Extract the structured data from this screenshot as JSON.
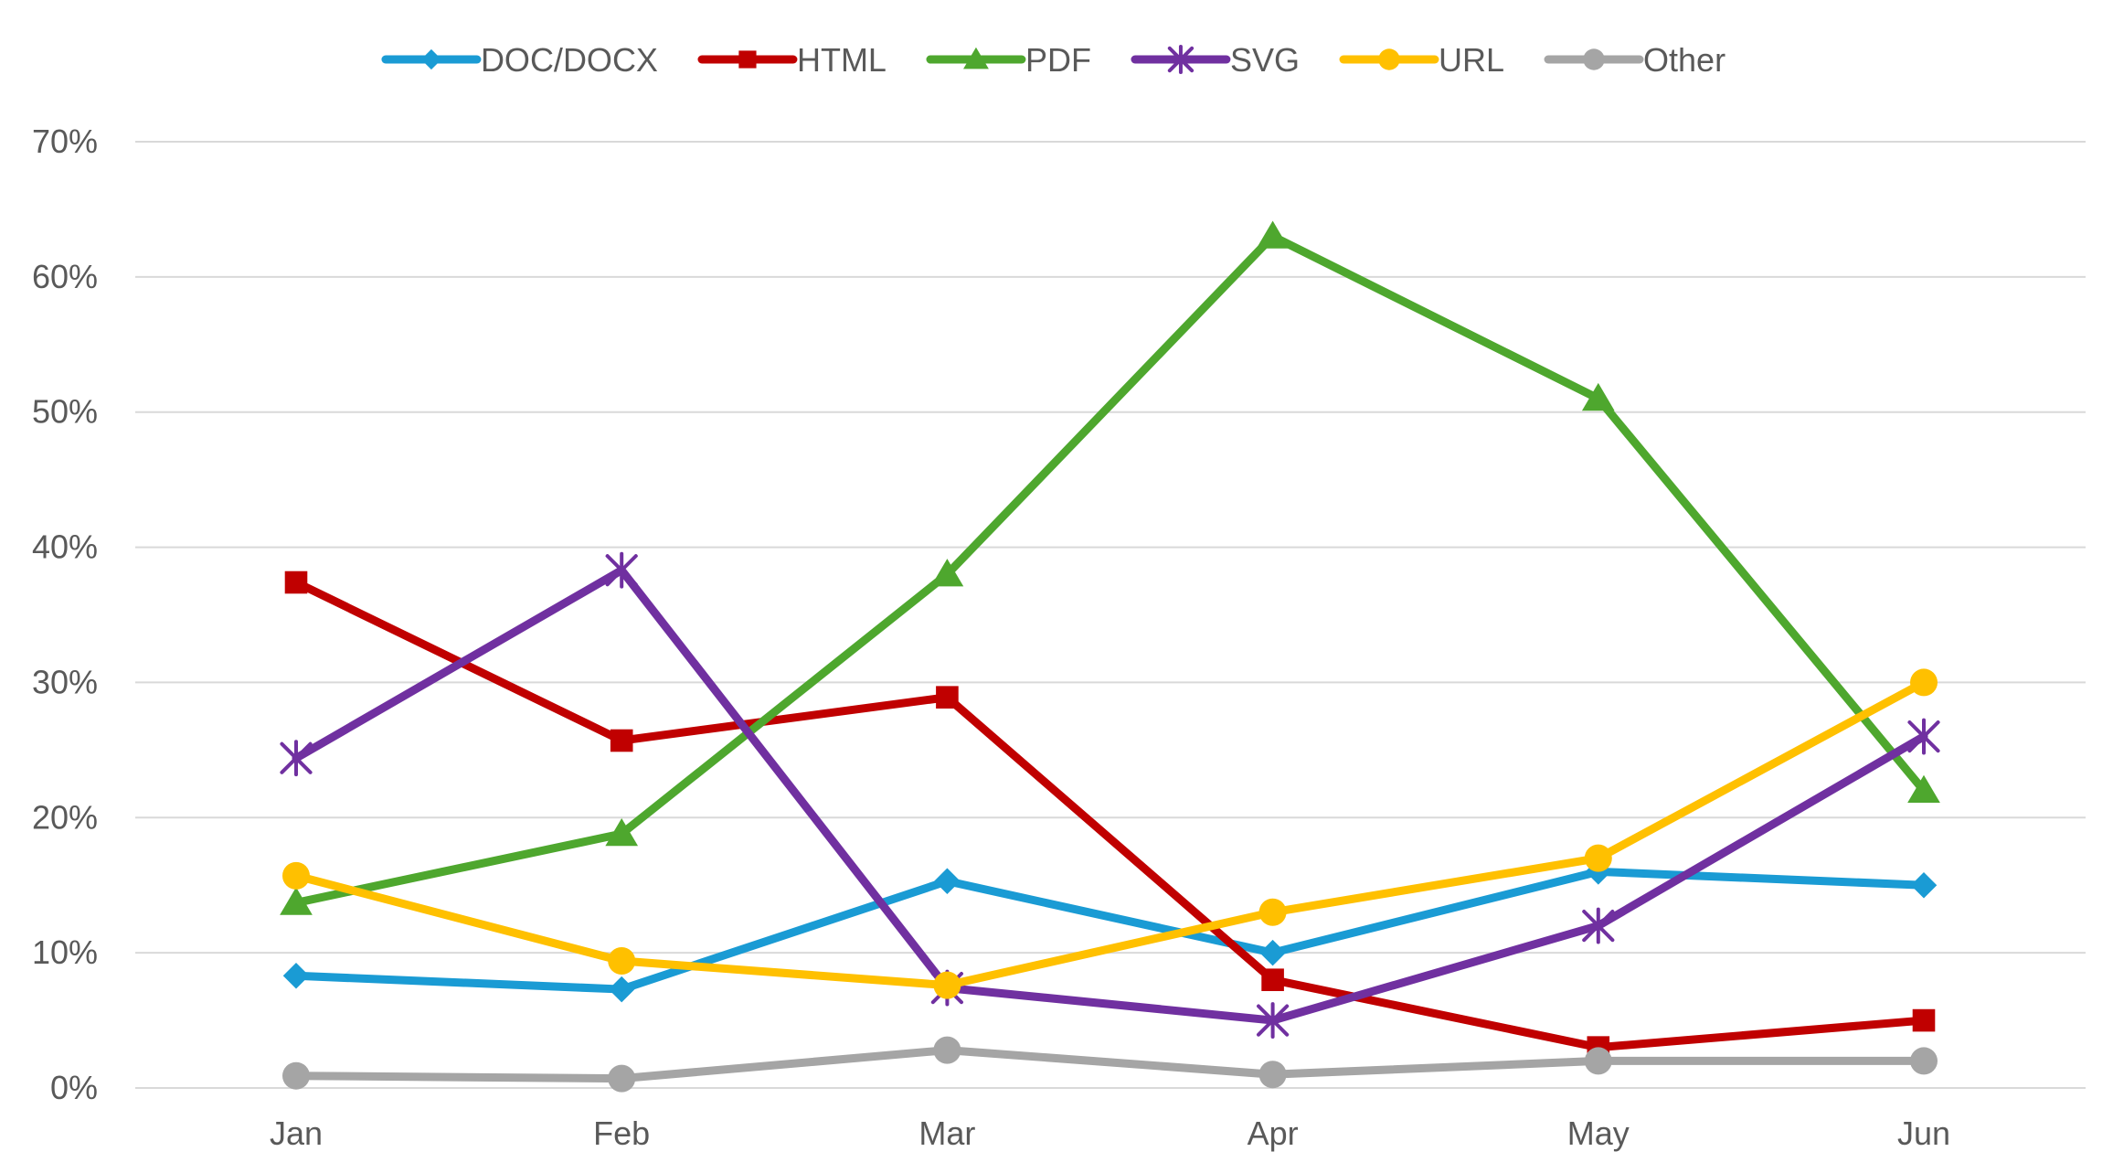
{
  "chart_data": {
    "type": "line",
    "title": "",
    "xlabel": "",
    "ylabel": "",
    "categories": [
      "Jan",
      "Feb",
      "Mar",
      "Apr",
      "May",
      "Jun"
    ],
    "ylim": [
      0,
      70
    ],
    "yticks": [
      0,
      10,
      20,
      30,
      40,
      50,
      60,
      70
    ],
    "ytick_labels": [
      "0%",
      "10%",
      "20%",
      "30%",
      "40%",
      "50%",
      "60%",
      "70%"
    ],
    "grid": true,
    "legend_position": "top",
    "series": [
      {
        "name": "DOC/DOCX",
        "color": "#1a9bd4",
        "marker": "diamond",
        "values": [
          8.3,
          7.3,
          15.3,
          10.0,
          16.0,
          15.0
        ]
      },
      {
        "name": "HTML",
        "color": "#c00000",
        "marker": "square",
        "values": [
          37.4,
          25.7,
          28.9,
          8.0,
          3.0,
          5.0
        ]
      },
      {
        "name": "PDF",
        "color": "#4ea72e",
        "marker": "triangle",
        "values": [
          13.7,
          18.8,
          38.0,
          63.0,
          51.0,
          22.0
        ]
      },
      {
        "name": "SVG",
        "color": "#7030a0",
        "marker": "star",
        "values": [
          24.4,
          38.3,
          7.4,
          5.0,
          12.0,
          26.0
        ]
      },
      {
        "name": "URL",
        "color": "#ffc000",
        "marker": "circle",
        "values": [
          15.7,
          9.4,
          7.6,
          13.0,
          17.0,
          30.0
        ]
      },
      {
        "name": "Other",
        "color": "#a5a5a5",
        "marker": "circle",
        "values": [
          0.9,
          0.7,
          2.8,
          1.0,
          2.0,
          2.0
        ]
      }
    ]
  }
}
